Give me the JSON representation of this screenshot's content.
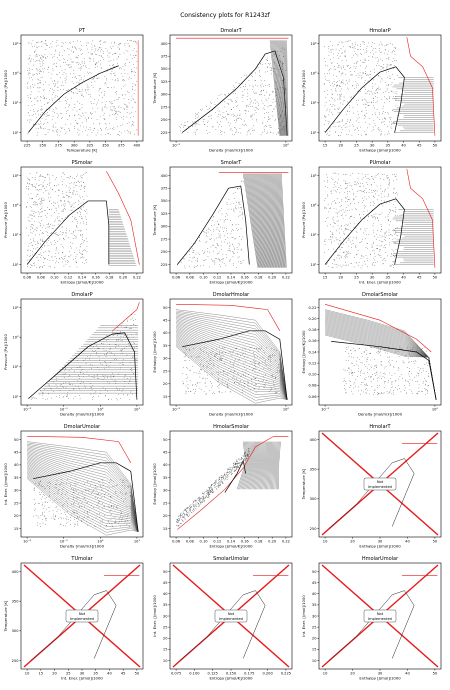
{
  "suptitle": "Consistency plots for R1243zf",
  "chart_data": [
    {
      "id": "PT",
      "type": "scatter",
      "title": "PT",
      "xlabel": "Temperature [K]",
      "ylabel": "Pressure [Pa]/1000",
      "xscale": "linear",
      "yscale": "log",
      "xticks": [
        "225",
        "250",
        "275",
        "300",
        "325",
        "350",
        "375",
        "400"
      ],
      "yticks": [
        "10¹",
        "10²",
        "10³",
        "10⁴"
      ],
      "implemented": true
    },
    {
      "id": "DmolarT",
      "type": "scatter",
      "title": "DmolarT",
      "xlabel": "Density [mol/m3]/1000",
      "ylabel": "Temperature [K]",
      "xscale": "log",
      "yscale": "linear",
      "xticks": [
        "10⁻²",
        "10⁰"
      ],
      "yticks": [
        "225",
        "250",
        "275",
        "300",
        "325",
        "350",
        "375",
        "400"
      ],
      "implemented": true
    },
    {
      "id": "HmolarP",
      "type": "scatter",
      "title": "HmolarP",
      "xlabel": "Enthalpy [J/mol]/1000",
      "ylabel": "Pressure [Pa]/1000",
      "xscale": "linear",
      "yscale": "log",
      "xticks": [
        "15",
        "20",
        "25",
        "30",
        "35",
        "40",
        "45",
        "50"
      ],
      "yticks": [
        "10¹",
        "10²",
        "10³",
        "10⁴"
      ],
      "implemented": true
    },
    {
      "id": "PSmolar",
      "type": "scatter",
      "title": "PSmolar",
      "xlabel": "Entropy [J/mol/K]/1000",
      "ylabel": "Pressure [Pa]/1000",
      "xscale": "linear",
      "yscale": "log",
      "xticks": [
        "0.06",
        "0.08",
        "0.10",
        "0.12",
        "0.14",
        "0.16",
        "0.18",
        "0.20",
        "0.22"
      ],
      "yticks": [
        "10¹",
        "10²",
        "10³",
        "10⁴"
      ],
      "implemented": true
    },
    {
      "id": "SmolarT",
      "type": "scatter",
      "title": "SmolarT",
      "xlabel": "Entropy [J/mol/K]/1000",
      "ylabel": "Temperature [K]",
      "xscale": "linear",
      "yscale": "linear",
      "xticks": [
        "0.06",
        "0.08",
        "0.10",
        "0.12",
        "0.14",
        "0.16",
        "0.18",
        "0.20",
        "0.22"
      ],
      "yticks": [
        "225",
        "250",
        "275",
        "300",
        "325",
        "350",
        "375",
        "400"
      ],
      "implemented": true
    },
    {
      "id": "PUmolar",
      "type": "scatter",
      "title": "PUmolar",
      "xlabel": "Int. Ener. [J/mol]/1000",
      "ylabel": "Pressure [Pa]/1000",
      "xscale": "linear",
      "yscale": "log",
      "xticks": [
        "15",
        "20",
        "25",
        "30",
        "35",
        "40",
        "45",
        "50"
      ],
      "yticks": [
        "10¹",
        "10²",
        "10³",
        "10⁴"
      ],
      "implemented": true
    },
    {
      "id": "DmolarP",
      "type": "scatter",
      "title": "DmolarP",
      "xlabel": "Density [mol/m3]/1000",
      "ylabel": "Pressure [Pa]/1000",
      "xscale": "log",
      "yscale": "log",
      "xticks": [
        "10⁻²",
        "10⁻¹",
        "10⁰",
        "10¹"
      ],
      "yticks": [
        "10¹",
        "10²",
        "10³",
        "10⁴"
      ],
      "implemented": true
    },
    {
      "id": "DmolarHmolar",
      "type": "scatter",
      "title": "DmolarHmolar",
      "xlabel": "Density [mol/m3]/1000",
      "ylabel": "Enthalpy [J/mol]/1000",
      "xscale": "log",
      "yscale": "linear",
      "xticks": [
        "10⁻²",
        "10⁰"
      ],
      "yticks": [
        "15",
        "20",
        "25",
        "30",
        "35",
        "40",
        "45",
        "50"
      ],
      "implemented": true
    },
    {
      "id": "DmolarSmolar",
      "type": "scatter",
      "title": "DmolarSmolar",
      "xlabel": "Density [mol/m3]/1000",
      "ylabel": "Entropy [J/mol/K]/1000",
      "xscale": "log",
      "yscale": "linear",
      "xticks": [
        "10⁻²",
        "10⁰"
      ],
      "yticks": [
        "0.06",
        "0.08",
        "0.10",
        "0.12",
        "0.14",
        "0.16",
        "0.18",
        "0.20",
        "0.22"
      ],
      "implemented": true
    },
    {
      "id": "DmolarUmolar",
      "type": "scatter",
      "title": "DmolarUmolar",
      "xlabel": "Density [mol/m3]/1000",
      "ylabel": "Int. Ener. [J/mol]/1000",
      "xscale": "log",
      "yscale": "linear",
      "xticks": [
        "10⁻²",
        "10⁻¹",
        "10⁰",
        "10¹"
      ],
      "yticks": [
        "15",
        "20",
        "25",
        "30",
        "35",
        "40",
        "45",
        "50"
      ],
      "implemented": true
    },
    {
      "id": "HmolarSmolar",
      "type": "scatter",
      "title": "HmolarSmolar",
      "xlabel": "Entropy [J/mol/K]/1000",
      "ylabel": "Enthalpy [J/mol]/1000",
      "xscale": "linear",
      "yscale": "linear",
      "xticks": [
        "0.06",
        "0.08",
        "0.10",
        "0.12",
        "0.14",
        "0.16",
        "0.18",
        "0.20",
        "0.22"
      ],
      "yticks": [
        "15",
        "20",
        "25",
        "30",
        "35",
        "40",
        "45",
        "50"
      ],
      "implemented": true
    },
    {
      "id": "HmolarT",
      "type": "scatter",
      "title": "HmolarT",
      "xlabel": "Enthalpy [J/mol]/1000",
      "ylabel": "Temperature [K]",
      "xscale": "linear",
      "yscale": "linear",
      "xticks": [
        "10",
        "20",
        "30",
        "40",
        "50"
      ],
      "yticks": [
        "250",
        "300",
        "350",
        "400"
      ],
      "implemented": false,
      "box_text": [
        "Not",
        "Implemented"
      ]
    },
    {
      "id": "TUmolar",
      "type": "scatter",
      "title": "TUmolar",
      "xlabel": "Int. Ener. [J/mol]/1000",
      "ylabel": "Temperature [K]",
      "xscale": "linear",
      "yscale": "linear",
      "xticks": [
        "10",
        "15",
        "20",
        "25",
        "30",
        "35",
        "40",
        "45",
        "50"
      ],
      "yticks": [
        "250",
        "300",
        "350",
        "400"
      ],
      "implemented": false,
      "box_text": [
        "Not",
        "Implemented"
      ]
    },
    {
      "id": "SmolarUmolar",
      "type": "scatter",
      "title": "SmolarUmolar",
      "xlabel": "Entropy [J/mol/K]/1000",
      "ylabel": "Int. Ener. [J/mol]/1000",
      "xscale": "linear",
      "yscale": "linear",
      "xticks": [
        "0.075",
        "0.100",
        "0.125",
        "0.150",
        "0.175",
        "0.200",
        "0.225"
      ],
      "yticks": [
        "10",
        "15",
        "20",
        "25",
        "30",
        "35",
        "40",
        "45",
        "50"
      ],
      "implemented": false,
      "box_text": [
        "Not",
        "Implemented"
      ]
    },
    {
      "id": "HmolarUmolar",
      "type": "scatter",
      "title": "HmolarUmolar",
      "xlabel": "Enthalpy [J/mol]/1000",
      "ylabel": "Int. Ener. [J/mol]/1000",
      "xscale": "linear",
      "yscale": "linear",
      "xticks": [
        "10",
        "20",
        "30",
        "40",
        "50"
      ],
      "yticks": [
        "10",
        "15",
        "20",
        "25",
        "30",
        "35",
        "40",
        "45",
        "50"
      ],
      "implemented": false,
      "box_text": [
        "Not",
        "Implemented"
      ]
    }
  ]
}
